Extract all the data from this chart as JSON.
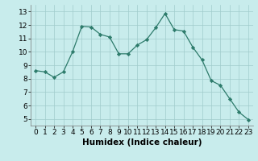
{
  "x": [
    0,
    1,
    2,
    3,
    4,
    5,
    6,
    7,
    8,
    9,
    10,
    11,
    12,
    13,
    14,
    15,
    16,
    17,
    18,
    19,
    20,
    21,
    22,
    23
  ],
  "y": [
    8.6,
    8.5,
    8.1,
    8.5,
    10.0,
    11.9,
    11.85,
    11.3,
    11.1,
    9.85,
    9.85,
    10.5,
    10.9,
    11.8,
    12.85,
    11.65,
    11.55,
    10.35,
    9.4,
    7.85,
    7.5,
    6.5,
    5.5,
    4.95
  ],
  "xlabel": "Humidex (Indice chaleur)",
  "xlim": [
    -0.5,
    23.5
  ],
  "ylim": [
    4.5,
    13.5
  ],
  "yticks": [
    5,
    6,
    7,
    8,
    9,
    10,
    11,
    12,
    13
  ],
  "xticks": [
    0,
    1,
    2,
    3,
    4,
    5,
    6,
    7,
    8,
    9,
    10,
    11,
    12,
    13,
    14,
    15,
    16,
    17,
    18,
    19,
    20,
    21,
    22,
    23
  ],
  "line_color": "#2d7b6b",
  "marker": "D",
  "marker_size": 2.2,
  "bg_color": "#c8ecec",
  "grid_color": "#a0cccc",
  "xlabel_fontsize": 7.5,
  "tick_fontsize": 6.5
}
